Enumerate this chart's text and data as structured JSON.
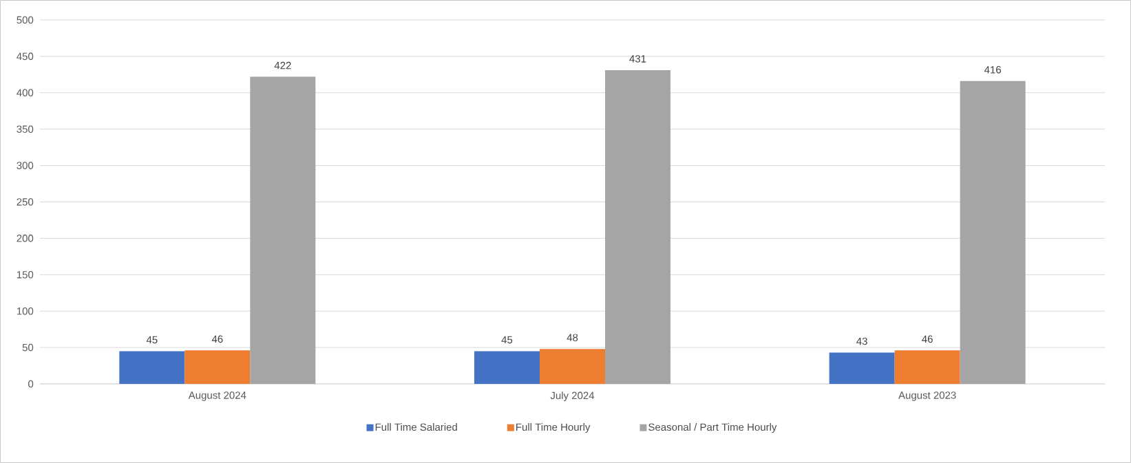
{
  "chart_data": {
    "type": "bar",
    "categories": [
      "August 2024",
      "July 2024",
      "August 2023"
    ],
    "series": [
      {
        "name": "Full Time Salaried",
        "color": "#4472c4",
        "values": [
          45,
          45,
          43
        ]
      },
      {
        "name": "Full Time Hourly",
        "color": "#ed7d31",
        "values": [
          46,
          48,
          46
        ]
      },
      {
        "name": "Seasonal / Part Time Hourly",
        "color": "#a5a5a5",
        "values": [
          422,
          431,
          416
        ]
      }
    ],
    "ylim": [
      0,
      500
    ],
    "yticks": [
      0,
      50,
      100,
      150,
      200,
      250,
      300,
      350,
      400,
      450,
      500
    ],
    "grid": "y",
    "legend": "bottom",
    "data_labels": true
  }
}
